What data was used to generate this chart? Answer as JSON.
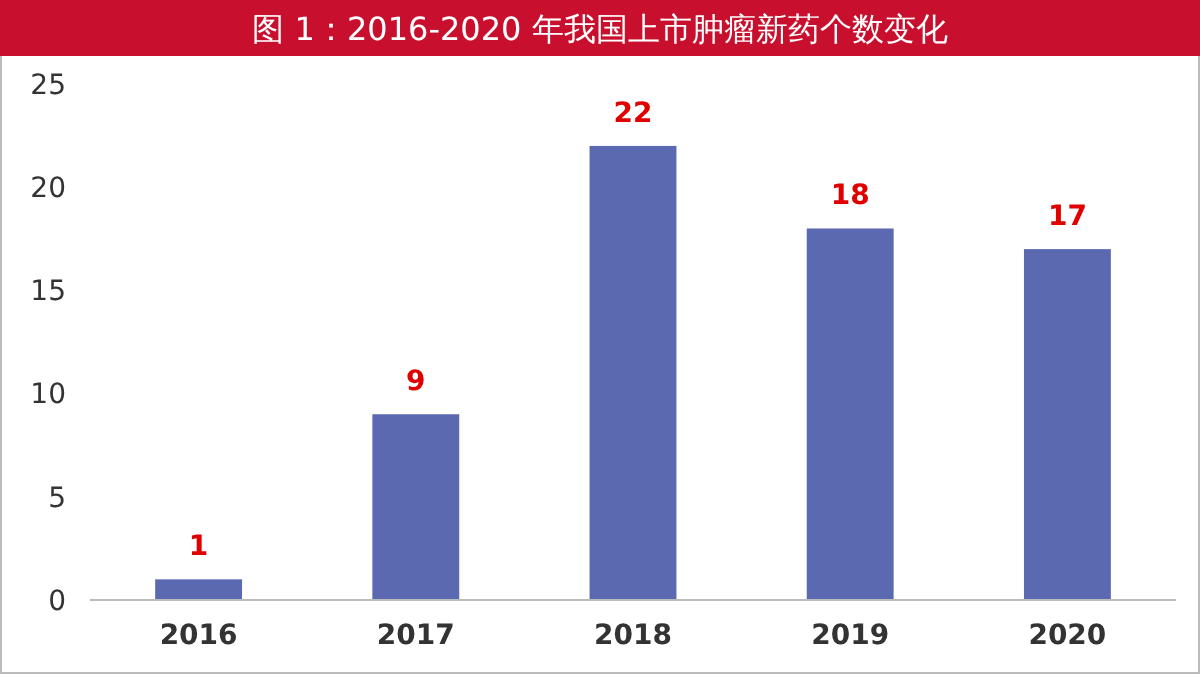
{
  "chart_data": {
    "type": "bar",
    "title": "图 1：2016-2020 年我国上市肿瘤新药个数变化",
    "categories": [
      "2016",
      "2017",
      "2018",
      "2019",
      "2020"
    ],
    "values": [
      1,
      9,
      22,
      18,
      17
    ],
    "color": "#5b69b0",
    "ylim": [
      0,
      25
    ],
    "yticks": [
      0,
      5,
      10,
      15,
      20,
      25
    ],
    "data_labels": true
  }
}
